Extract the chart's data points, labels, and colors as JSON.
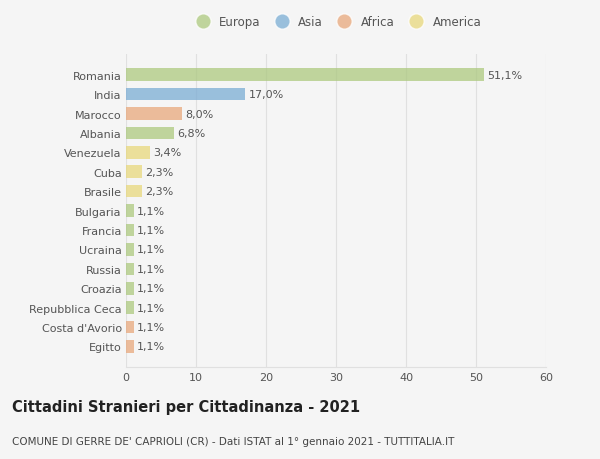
{
  "title": "Cittadini Stranieri per Cittadinanza - 2021",
  "subtitle": "COMUNE DI GERRE DE' CAPRIOLI (CR) - Dati ISTAT al 1° gennaio 2021 - TUTTITALIA.IT",
  "countries": [
    "Romania",
    "India",
    "Marocco",
    "Albania",
    "Venezuela",
    "Cuba",
    "Brasile",
    "Bulgaria",
    "Francia",
    "Ucraina",
    "Russia",
    "Croazia",
    "Repubblica Ceca",
    "Costa d'Avorio",
    "Egitto"
  ],
  "values": [
    51.1,
    17.0,
    8.0,
    6.8,
    3.4,
    2.3,
    2.3,
    1.1,
    1.1,
    1.1,
    1.1,
    1.1,
    1.1,
    1.1,
    1.1
  ],
  "labels": [
    "51,1%",
    "17,0%",
    "8,0%",
    "6,8%",
    "3,4%",
    "2,3%",
    "2,3%",
    "1,1%",
    "1,1%",
    "1,1%",
    "1,1%",
    "1,1%",
    "1,1%",
    "1,1%",
    "1,1%"
  ],
  "continent": [
    "Europa",
    "Asia",
    "Africa",
    "Europa",
    "America",
    "America",
    "America",
    "Europa",
    "Europa",
    "Europa",
    "Europa",
    "Europa",
    "Europa",
    "Africa",
    "Africa"
  ],
  "colors": {
    "Europa": "#adc97f",
    "Asia": "#7badd4",
    "Africa": "#e8a87c",
    "America": "#e8d87c"
  },
  "xlim": [
    0,
    60
  ],
  "xticks": [
    0,
    10,
    20,
    30,
    40,
    50,
    60
  ],
  "background_color": "#f5f5f5",
  "grid_color": "#e0e0e0",
  "bar_alpha": 0.75,
  "label_fontsize": 8.0,
  "tick_fontsize": 8.0,
  "title_fontsize": 10.5,
  "subtitle_fontsize": 7.5,
  "legend_fontsize": 8.5,
  "bar_height": 0.65
}
